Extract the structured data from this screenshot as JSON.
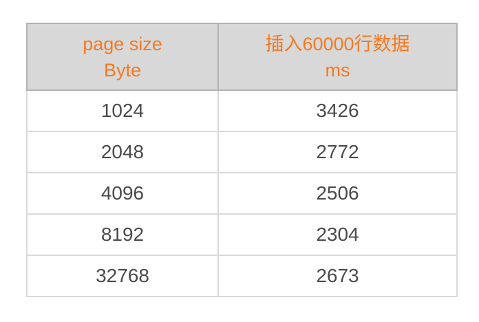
{
  "chart_data": {
    "type": "table",
    "title": "",
    "columns": [
      "page size Byte",
      "插入60000行数据 ms"
    ],
    "x": [
      1024,
      2048,
      4096,
      8192,
      32768
    ],
    "values": [
      3426,
      2772,
      2506,
      2304,
      2673
    ],
    "xlabel": "page size (Byte)",
    "ylabel": "插入60000行数据 (ms)",
    "rows": [
      [
        1024,
        3426
      ],
      [
        2048,
        2772
      ],
      [
        4096,
        2506
      ],
      [
        8192,
        2304
      ],
      [
        32768,
        2673
      ]
    ]
  },
  "table": {
    "header": {
      "col1_line1": "page size",
      "col1_line2": "Byte",
      "col2_line1": "插入60000行数据",
      "col2_line2": "ms"
    },
    "rows": [
      {
        "page_size": "1024",
        "insert_ms": "3426"
      },
      {
        "page_size": "2048",
        "insert_ms": "2772"
      },
      {
        "page_size": "4096",
        "insert_ms": "2506"
      },
      {
        "page_size": "8192",
        "insert_ms": "2304"
      },
      {
        "page_size": "32768",
        "insert_ms": "2673"
      }
    ]
  },
  "colors": {
    "header_text": "#f5791f",
    "header_background": "#d8d8d8",
    "header_border": "#b3b3b3",
    "body_text": "#4a4a4a",
    "body_border": "#d9d9d9",
    "page_background": "#ffffff"
  }
}
